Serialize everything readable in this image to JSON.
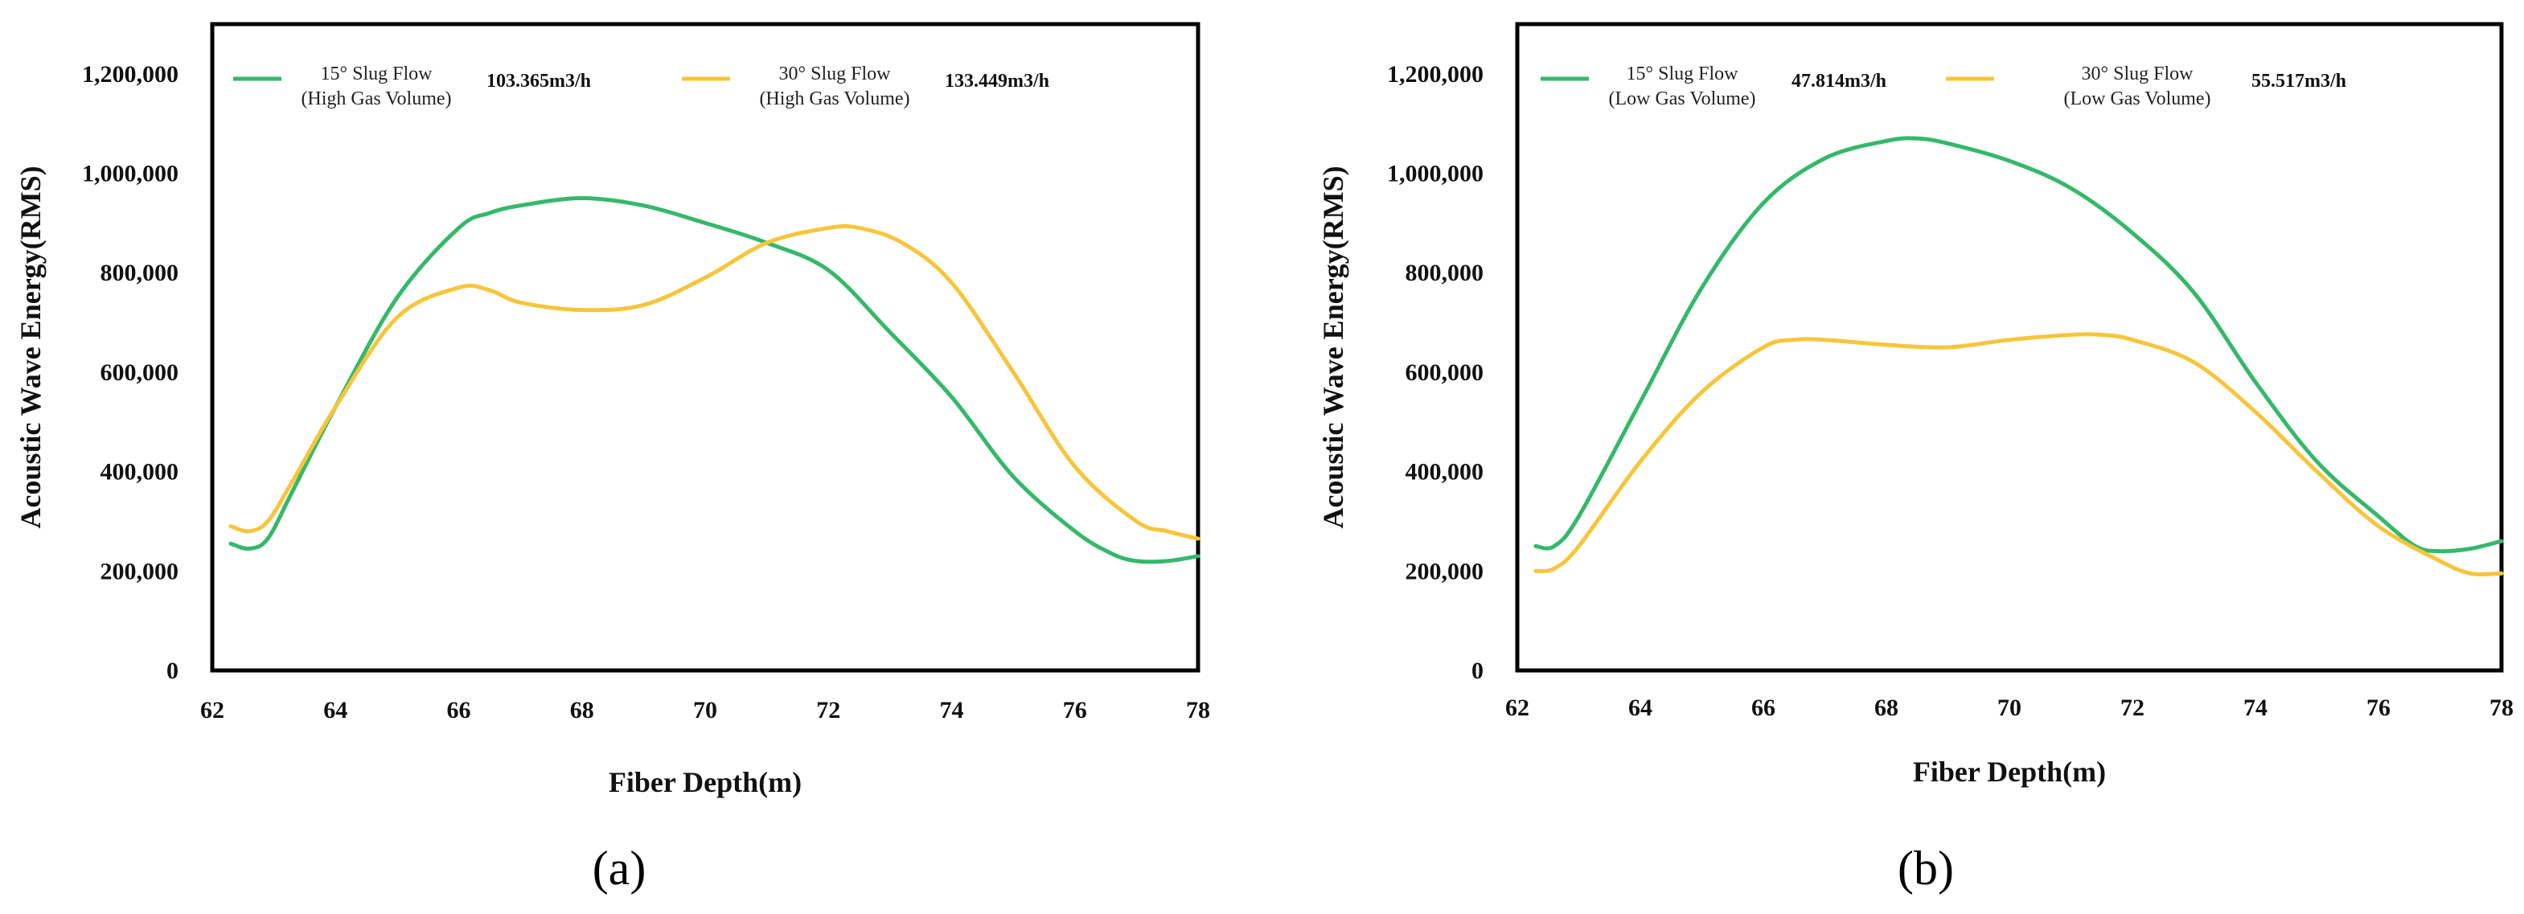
{
  "colors": {
    "green": "#35b86a",
    "yellow": "#f7c53b",
    "frame": "#000000"
  },
  "chart_data": [
    {
      "type": "line",
      "panel_label": "(a)",
      "xlabel": "Fiber Depth(m)",
      "ylabel": "Acoustic Wave Energy(RMS)",
      "xlim": [
        62,
        78
      ],
      "ylim": [
        0,
        1300000
      ],
      "xticks": [
        "62",
        "64",
        "66",
        "68",
        "70",
        "72",
        "74",
        "76",
        "78"
      ],
      "yticks": [
        "0",
        "200,000",
        "400,000",
        "600,000",
        "800,000",
        "1,000,000",
        "1,200,000"
      ],
      "grid": false,
      "legend_position": "top",
      "series": [
        {
          "name_line1": "15°  Slug Flow",
          "name_line2": "(High Gas Volume)",
          "flow": "103.365m3/h",
          "color": "green",
          "x": [
            62.3,
            62.6,
            62.9,
            63.3,
            64,
            65,
            66,
            66.5,
            67,
            68,
            69,
            70,
            71,
            72,
            73,
            74,
            75,
            76,
            76.6,
            77,
            77.5,
            78
          ],
          "y": [
            255000,
            245000,
            265000,
            360000,
            530000,
            750000,
            890000,
            920000,
            935000,
            950000,
            935000,
            900000,
            860000,
            805000,
            680000,
            550000,
            390000,
            280000,
            235000,
            220000,
            220000,
            230000
          ]
        },
        {
          "name_line1": "30°  Slug Flow",
          "name_line2": "(High Gas Volume)",
          "flow": "133.449m3/h",
          "color": "yellow",
          "x": [
            62.3,
            62.6,
            62.9,
            63.3,
            64,
            65,
            66,
            66.5,
            67,
            68,
            69,
            70,
            71,
            72,
            72.5,
            73.2,
            74,
            75,
            76,
            77,
            77.5,
            78
          ],
          "y": [
            290000,
            280000,
            300000,
            380000,
            530000,
            710000,
            770000,
            765000,
            740000,
            725000,
            735000,
            790000,
            860000,
            890000,
            890000,
            860000,
            780000,
            600000,
            410000,
            300000,
            280000,
            265000
          ]
        }
      ]
    },
    {
      "type": "line",
      "panel_label": "(b)",
      "xlabel": "Fiber Depth(m)",
      "ylabel": "Acoustic Wave Energy(RMS)",
      "xlim": [
        62,
        78
      ],
      "ylim": [
        0,
        1300000
      ],
      "xticks": [
        "62",
        "64",
        "66",
        "68",
        "70",
        "72",
        "74",
        "76",
        "78"
      ],
      "yticks": [
        "0",
        "200,000",
        "400,000",
        "600,000",
        "800,000",
        "1,000,000",
        "1,200,000"
      ],
      "grid": false,
      "legend_position": "top",
      "series": [
        {
          "name_line1": "15°  Slug Flow",
          "name_line2": "(Low Gas Volume)",
          "flow": "47.814m3/h",
          "color": "green",
          "x": [
            62.3,
            62.6,
            63,
            64,
            65,
            66,
            67,
            68,
            68.5,
            69,
            70,
            71,
            72,
            73,
            74,
            75,
            76,
            76.6,
            77,
            77.5,
            78
          ],
          "y": [
            250000,
            250000,
            310000,
            540000,
            770000,
            940000,
            1030000,
            1065000,
            1070000,
            1060000,
            1025000,
            970000,
            880000,
            760000,
            580000,
            420000,
            310000,
            250000,
            240000,
            245000,
            260000
          ]
        },
        {
          "name_line1": "30°  Slug Flow",
          "name_line2": "(Low Gas Volume)",
          "flow": "55.517m3/h",
          "color": "yellow",
          "x": [
            62.3,
            62.6,
            63,
            64,
            65,
            66,
            66.5,
            67,
            68,
            69,
            70,
            71,
            71.5,
            72,
            73,
            74,
            75,
            76,
            77,
            77.5,
            78
          ],
          "y": [
            200000,
            205000,
            250000,
            420000,
            560000,
            650000,
            665000,
            665000,
            655000,
            650000,
            665000,
            675000,
            675000,
            665000,
            620000,
            520000,
            400000,
            290000,
            220000,
            195000,
            195000
          ]
        }
      ]
    }
  ]
}
